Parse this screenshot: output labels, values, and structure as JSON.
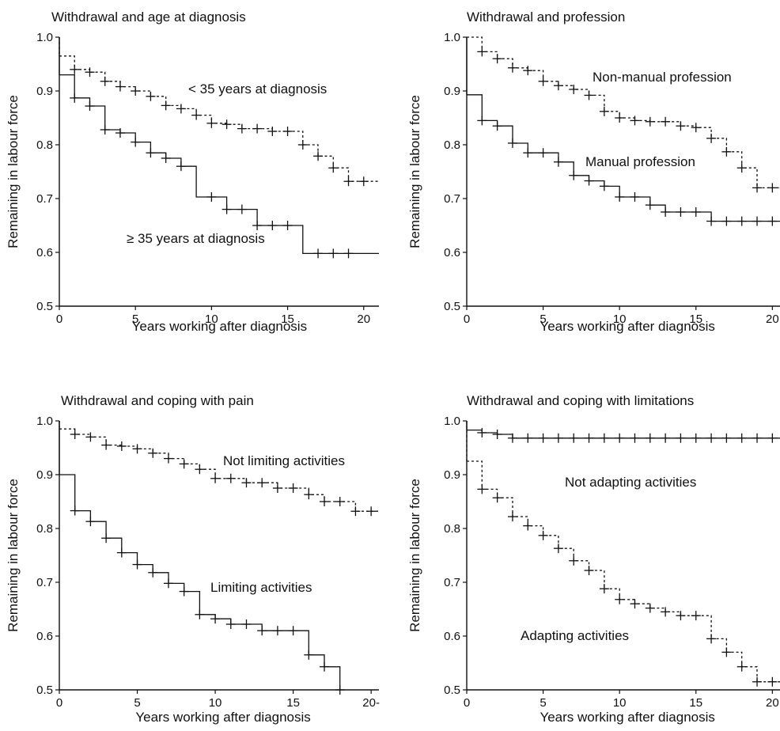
{
  "chart_data": [
    {
      "type": "line",
      "title": "Withdrawal and age at diagnosis",
      "xlabel": "Years working after diagnosis",
      "ylabel": "Remaining in labour force",
      "xlim": [
        0,
        21
      ],
      "ylim": [
        0.5,
        1.0
      ],
      "x_ticks": [
        "0",
        "5",
        "10",
        "15",
        "20"
      ],
      "y_ticks": [
        "0.5",
        "0.6",
        "0.7",
        "0.8",
        "0.9",
        "1.0"
      ],
      "series": [
        {
          "name": "< 35 years at diagnosis",
          "style": "dashed",
          "steps": [
            [
              0,
              0.965
            ],
            [
              1,
              0.94
            ],
            [
              2,
              0.935
            ],
            [
              3,
              0.918
            ],
            [
              4,
              0.908
            ],
            [
              5,
              0.9
            ],
            [
              6,
              0.89
            ],
            [
              7,
              0.873
            ],
            [
              8,
              0.867
            ],
            [
              9,
              0.855
            ],
            [
              10,
              0.84
            ],
            [
              11,
              0.838
            ],
            [
              12,
              0.83
            ],
            [
              13,
              0.83
            ],
            [
              14,
              0.825
            ],
            [
              15,
              0.825
            ],
            [
              16,
              0.8
            ],
            [
              17,
              0.779
            ],
            [
              18,
              0.757
            ],
            [
              19,
              0.732
            ],
            [
              20,
              0.732
            ],
            [
              21,
              0.732
            ]
          ],
          "censor_x": [
            1,
            2,
            3,
            4,
            5,
            6,
            7,
            8,
            9,
            10,
            11,
            12,
            13,
            14,
            15,
            16,
            17,
            18,
            19,
            20
          ]
        },
        {
          "name": "≥ 35 years at diagnosis",
          "style": "solid",
          "steps": [
            [
              0,
              0.93
            ],
            [
              1,
              0.887
            ],
            [
              2,
              0.872
            ],
            [
              3,
              0.828
            ],
            [
              4,
              0.822
            ],
            [
              5,
              0.805
            ],
            [
              6,
              0.785
            ],
            [
              7,
              0.775
            ],
            [
              8,
              0.76
            ],
            [
              9,
              0.703
            ],
            [
              10,
              0.703
            ],
            [
              11,
              0.68
            ],
            [
              12,
              0.68
            ],
            [
              13,
              0.65
            ],
            [
              14,
              0.65
            ],
            [
              15,
              0.65
            ],
            [
              16,
              0.598
            ],
            [
              17,
              0.598
            ],
            [
              18,
              0.598
            ],
            [
              19,
              0.598
            ],
            [
              21,
              0.598
            ]
          ],
          "censor_x": [
            1,
            2,
            3,
            4,
            5,
            6,
            7,
            8,
            10,
            11,
            12,
            13,
            14,
            15,
            17,
            18,
            19
          ]
        }
      ]
    },
    {
      "type": "line",
      "title": "Withdrawal and profession",
      "xlabel": "Years working after diagnosis",
      "ylabel": "Remaining in labour force",
      "xlim": [
        0,
        20.5
      ],
      "ylim": [
        0.5,
        1.0
      ],
      "x_ticks": [
        "0",
        "5",
        "10",
        "15",
        "20"
      ],
      "y_ticks": [
        "0.5",
        "0.6",
        "0.7",
        "0.8",
        "0.9",
        "1.0"
      ],
      "series": [
        {
          "name": "Non-manual profession",
          "style": "dashed",
          "steps": [
            [
              0,
              1.0
            ],
            [
              1,
              0.973
            ],
            [
              2,
              0.96
            ],
            [
              3,
              0.943
            ],
            [
              4,
              0.938
            ],
            [
              5,
              0.918
            ],
            [
              6,
              0.91
            ],
            [
              7,
              0.903
            ],
            [
              8,
              0.892
            ],
            [
              9,
              0.862
            ],
            [
              10,
              0.85
            ],
            [
              11,
              0.845
            ],
            [
              12,
              0.843
            ],
            [
              13,
              0.843
            ],
            [
              14,
              0.835
            ],
            [
              15,
              0.832
            ],
            [
              16,
              0.812
            ],
            [
              17,
              0.787
            ],
            [
              18,
              0.757
            ],
            [
              19,
              0.72
            ],
            [
              20,
              0.72
            ],
            [
              20.5,
              0.72
            ]
          ],
          "censor_x": [
            1,
            2,
            3,
            4,
            5,
            6,
            7,
            8,
            9,
            10,
            11,
            12,
            13,
            14,
            15,
            16,
            17,
            18,
            19,
            20
          ]
        },
        {
          "name": "Manual profession",
          "style": "solid",
          "steps": [
            [
              0,
              0.893
            ],
            [
              1,
              0.845
            ],
            [
              2,
              0.835
            ],
            [
              3,
              0.803
            ],
            [
              4,
              0.785
            ],
            [
              5,
              0.785
            ],
            [
              6,
              0.768
            ],
            [
              7,
              0.743
            ],
            [
              8,
              0.733
            ],
            [
              9,
              0.723
            ],
            [
              10,
              0.703
            ],
            [
              11,
              0.703
            ],
            [
              12,
              0.688
            ],
            [
              13,
              0.675
            ],
            [
              14,
              0.675
            ],
            [
              15,
              0.675
            ],
            [
              16,
              0.658
            ],
            [
              17,
              0.658
            ],
            [
              18,
              0.658
            ],
            [
              19,
              0.658
            ],
            [
              20,
              0.658
            ],
            [
              20.5,
              0.658
            ]
          ],
          "censor_x": [
            1,
            2,
            3,
            4,
            5,
            6,
            7,
            8,
            9,
            10,
            11,
            12,
            13,
            14,
            15,
            16,
            17,
            18,
            19,
            20
          ]
        }
      ]
    },
    {
      "type": "line",
      "title": "Withdrawal and coping with pain",
      "xlabel": "Years working after diagnosis",
      "ylabel": "Remaining in labour force",
      "xlim": [
        0,
        20.5
      ],
      "ylim": [
        0.5,
        1.0
      ],
      "x_ticks": [
        "0",
        "5",
        "10",
        "15",
        "20-"
      ],
      "y_ticks": [
        "0.5",
        "0.6",
        "0.7",
        "0.8",
        "0.9",
        "1.0"
      ],
      "series": [
        {
          "name": "Not limiting activities",
          "style": "dashed",
          "steps": [
            [
              0,
              0.985
            ],
            [
              1,
              0.975
            ],
            [
              2,
              0.97
            ],
            [
              3,
              0.955
            ],
            [
              4,
              0.953
            ],
            [
              5,
              0.948
            ],
            [
              6,
              0.94
            ],
            [
              7,
              0.93
            ],
            [
              8,
              0.92
            ],
            [
              9,
              0.91
            ],
            [
              10,
              0.893
            ],
            [
              11,
              0.893
            ],
            [
              12,
              0.885
            ],
            [
              13,
              0.885
            ],
            [
              14,
              0.875
            ],
            [
              15,
              0.875
            ],
            [
              16,
              0.863
            ],
            [
              17,
              0.85
            ],
            [
              18,
              0.85
            ],
            [
              19,
              0.832
            ],
            [
              20,
              0.832
            ],
            [
              20.5,
              0.832
            ]
          ],
          "censor_x": [
            1,
            2,
            3,
            4,
            5,
            6,
            7,
            8,
            9,
            10,
            11,
            12,
            13,
            14,
            15,
            16,
            17,
            18,
            19,
            20
          ]
        },
        {
          "name": "Limiting activities",
          "style": "solid",
          "steps": [
            [
              0,
              0.9
            ],
            [
              1,
              0.833
            ],
            [
              2,
              0.813
            ],
            [
              3,
              0.782
            ],
            [
              4,
              0.755
            ],
            [
              5,
              0.733
            ],
            [
              6,
              0.718
            ],
            [
              7,
              0.698
            ],
            [
              8,
              0.683
            ],
            [
              9,
              0.64
            ],
            [
              10,
              0.632
            ],
            [
              11,
              0.622
            ],
            [
              12,
              0.622
            ],
            [
              13,
              0.61
            ],
            [
              14,
              0.61
            ],
            [
              15,
              0.61
            ],
            [
              16,
              0.565
            ],
            [
              17,
              0.543
            ],
            [
              18,
              0.5
            ]
          ],
          "censor_x": [
            1,
            2,
            3,
            4,
            5,
            6,
            7,
            8,
            9,
            10,
            11,
            12,
            13,
            14,
            15,
            16,
            17,
            18
          ]
        }
      ]
    },
    {
      "type": "line",
      "title": "Withdrawal and coping with limitations",
      "xlabel": "Years working after diagnosis",
      "ylabel": "Remaining in labour force",
      "xlim": [
        0,
        20.5
      ],
      "ylim": [
        0.5,
        1.0
      ],
      "x_ticks": [
        "0",
        "5",
        "10",
        "15",
        "20"
      ],
      "y_ticks": [
        "0.5",
        "0.6",
        "0.7",
        "0.8",
        "0.9",
        "1.0"
      ],
      "series": [
        {
          "name": "Not adapting activities",
          "style": "solid",
          "steps": [
            [
              0,
              0.983
            ],
            [
              1,
              0.978
            ],
            [
              2,
              0.975
            ],
            [
              3,
              0.968
            ],
            [
              20.5,
              0.968
            ]
          ],
          "censor_x": [
            1,
            2,
            3,
            4,
            5,
            6,
            7,
            8,
            9,
            10,
            11,
            12,
            13,
            14,
            15,
            16,
            17,
            18,
            19,
            20
          ]
        },
        {
          "name": "Adapting activities",
          "style": "dashed",
          "steps": [
            [
              0,
              0.925
            ],
            [
              1,
              0.873
            ],
            [
              2,
              0.857
            ],
            [
              3,
              0.822
            ],
            [
              4,
              0.805
            ],
            [
              5,
              0.787
            ],
            [
              6,
              0.763
            ],
            [
              7,
              0.74
            ],
            [
              8,
              0.722
            ],
            [
              9,
              0.688
            ],
            [
              10,
              0.668
            ],
            [
              11,
              0.66
            ],
            [
              12,
              0.652
            ],
            [
              13,
              0.645
            ],
            [
              14,
              0.638
            ],
            [
              15,
              0.638
            ],
            [
              16,
              0.595
            ],
            [
              17,
              0.57
            ],
            [
              18,
              0.543
            ],
            [
              19,
              0.515
            ],
            [
              20,
              0.515
            ],
            [
              20.5,
              0.515
            ]
          ],
          "censor_x": [
            1,
            2,
            3,
            4,
            5,
            6,
            7,
            8,
            9,
            10,
            11,
            12,
            13,
            14,
            15,
            16,
            17,
            18,
            19,
            20
          ]
        }
      ]
    }
  ]
}
